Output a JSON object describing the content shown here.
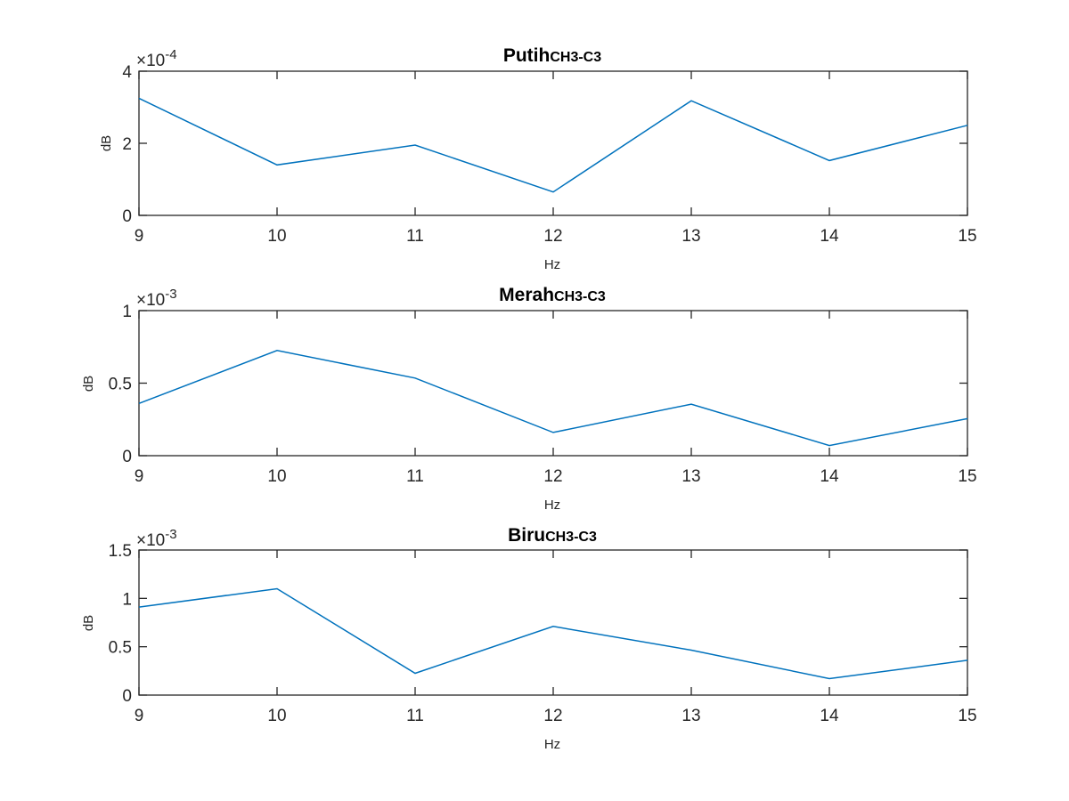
{
  "colors": {
    "series": "#0072bd",
    "axes": "#262626",
    "background": "#ffffff"
  },
  "chart_data": [
    {
      "type": "line",
      "title": "Putih",
      "title_subscript": "CH3-C3",
      "xlabel": "Hz",
      "ylabel": "dB",
      "xlim": [
        9,
        15
      ],
      "xticks": [
        9,
        10,
        11,
        12,
        13,
        14,
        15
      ],
      "ylim": [
        0,
        0.0004
      ],
      "yticks": [
        0,
        2,
        4
      ],
      "exponent_base": "×10",
      "exponent": "-4",
      "x": [
        9,
        10,
        11,
        12,
        13,
        14,
        15
      ],
      "values": [
        0.000325,
        0.00014,
        0.000195,
        6.5e-05,
        0.000318,
        0.000152,
        0.00025
      ]
    },
    {
      "type": "line",
      "title": "Merah",
      "title_subscript": "CH3-C3",
      "xlabel": "Hz",
      "ylabel": "dB",
      "xlim": [
        9,
        15
      ],
      "xticks": [
        9,
        10,
        11,
        12,
        13,
        14,
        15
      ],
      "ylim": [
        0,
        0.001
      ],
      "yticks": [
        0,
        0.5,
        1
      ],
      "exponent_base": "×10",
      "exponent": "-3",
      "x": [
        9,
        10,
        11,
        12,
        13,
        14,
        15
      ],
      "values": [
        0.00036,
        0.000725,
        0.000535,
        0.00016,
        0.000355,
        7e-05,
        0.000255
      ]
    },
    {
      "type": "line",
      "title": "Biru",
      "title_subscript": "CH3-C3",
      "xlabel": "Hz",
      "ylabel": "dB",
      "xlim": [
        9,
        15
      ],
      "xticks": [
        9,
        10,
        11,
        12,
        13,
        14,
        15
      ],
      "ylim": [
        0,
        0.0015
      ],
      "yticks": [
        0,
        0.5,
        1,
        1.5
      ],
      "exponent_base": "×10",
      "exponent": "-3",
      "x": [
        9,
        10,
        11,
        12,
        13,
        14,
        15
      ],
      "values": [
        0.00091,
        0.0011,
        0.000225,
        0.00071,
        0.000465,
        0.00017,
        0.00036
      ]
    }
  ]
}
